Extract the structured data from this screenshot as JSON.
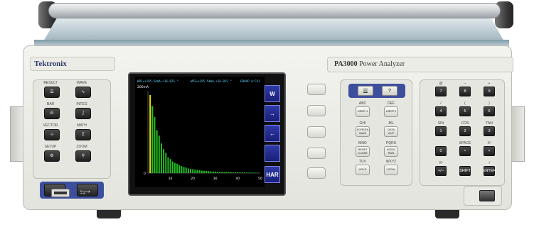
{
  "brand": "Tektronix",
  "model": {
    "name": "PA3000",
    "subtitle": "Power Analyzer"
  },
  "left_keys": [
    {
      "label": "RESULT",
      "glyph": "☰"
    },
    {
      "label": "WAVE",
      "glyph": "∿"
    },
    {
      "label": "BAR",
      "glyph": "ılı"
    },
    {
      "label": "INTEG",
      "glyph": "∫"
    },
    {
      "label": "VECTOR",
      "glyph": "⊹"
    },
    {
      "label": "MATH",
      "glyph": "Σ"
    },
    {
      "label": "SETUP",
      "glyph": "⚙"
    },
    {
      "label": "ZOOM",
      "glyph": "⚲"
    }
  ],
  "arrow_keys": [
    "←",
    "→"
  ],
  "screen": {
    "header_left": "WP1=+195.54mA,+16.02S °",
    "header_mid": "WP2=+195.54mA,+16.02S °",
    "header_right": "GROUP A:Ch1",
    "y_label": "200mA",
    "y_zero": "0",
    "x_ticks": [
      "10",
      "20",
      "30",
      "40",
      "50"
    ],
    "softkeys": [
      "W",
      "→",
      "←",
      "",
      "HAR"
    ],
    "softkey_note": "REAIP 19/28"
  },
  "chart_data": {
    "type": "bar",
    "title": "",
    "ylabel": "200mA",
    "xlim": [
      0,
      50
    ],
    "x_ticks": [
      10,
      20,
      30,
      40,
      50
    ],
    "series": [
      {
        "color": "#e8e800",
        "x": [
          1
        ],
        "values": [
          1.0
        ]
      },
      {
        "color": "#22c022",
        "x": [
          2,
          3,
          4,
          5,
          6,
          7,
          8,
          9,
          10,
          11,
          12,
          13,
          14,
          15,
          16,
          17,
          18,
          19,
          20,
          21,
          22,
          23,
          24,
          25,
          26,
          27,
          28,
          29,
          30,
          31,
          32,
          33,
          34,
          35,
          36,
          37,
          38,
          39,
          40,
          41,
          42,
          43,
          44,
          45,
          46,
          47,
          48,
          49
        ],
        "values": [
          0.86,
          0.72,
          0.55,
          0.48,
          0.38,
          0.31,
          0.26,
          0.2,
          0.18,
          0.15,
          0.13,
          0.12,
          0.1,
          0.09,
          0.08,
          0.07,
          0.06,
          0.055,
          0.05,
          0.045,
          0.04,
          0.035,
          0.032,
          0.03,
          0.028,
          0.025,
          0.022,
          0.02,
          0.018,
          0.017,
          0.016,
          0.015,
          0.014,
          0.013,
          0.012,
          0.011,
          0.01,
          0.01,
          0.009,
          0.009,
          0.008,
          0.008,
          0.007,
          0.007,
          0.006,
          0.006,
          0.005,
          0.005
        ]
      }
    ]
  },
  "numpad_rows": [
    [
      {
        "top": "@",
        "key": "7"
      },
      {
        "top": "–",
        "key": "8"
      },
      {
        "top": "+",
        "key": "9"
      }
    ],
    [
      {
        "top": "/",
        "key": "4"
      },
      {
        "top": "(",
        "key": "5"
      },
      {
        "top": ")",
        "key": "6"
      }
    ],
    [
      {
        "top": "SIN",
        "key": "1"
      },
      {
        "top": "COS",
        "key": "2"
      },
      {
        "top": "TAN",
        "key": "3"
      }
    ],
    [
      {
        "top": "",
        "key": "0"
      },
      {
        "top": "SPACE",
        "key": "•"
      },
      {
        "top": "X²",
        "key": "×"
      }
    ],
    [
      {
        "top": "X²",
        "key": "+/–"
      },
      {
        "top": "",
        "key": "SHIFT"
      },
      {
        "top": "√",
        "key": "ENTER"
      }
    ]
  ],
  "menu_keys": [
    {
      "top": "ABC",
      "label": "USER 1"
    },
    {
      "top": "DEF",
      "label": "USER 2"
    },
    {
      "top": "GHI",
      "label": "SCREEN SAVE"
    },
    {
      "top": "JKL",
      "label": "DATA OUT"
    },
    {
      "top": "MNO",
      "label": "RESET CLEAR"
    },
    {
      "top": "PQRS",
      "label": "INTEG RUN"
    },
    {
      "top": "TUV",
      "label": "HOLD"
    },
    {
      "top": "WXYZ",
      "label": "LOCAL"
    }
  ],
  "top_menu_icons": [
    "menu-icon",
    "help-icon"
  ],
  "help_glyph": "?",
  "menu_glyph": "☰",
  "usb_glyph": "⇆"
}
